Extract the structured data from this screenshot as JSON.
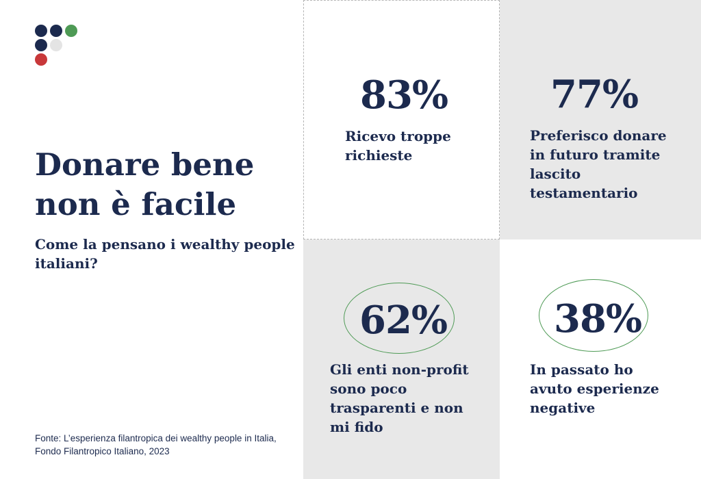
{
  "logo": {
    "colors": {
      "navy": "#1c2a4e",
      "green": "#4e9a55",
      "light": "#e4e4e4",
      "red": "#c8383a"
    }
  },
  "header": {
    "title": "Donare bene non è facile",
    "subtitle": "Come la pensano i wealthy people italiani?"
  },
  "source": {
    "line1": "Fonte: L’esperienza filantropica dei wealthy people in Italia,",
    "line2": "Fondo Filantropico Italiano, 2023"
  },
  "stats": [
    {
      "value": "83%",
      "label": "Ricevo troppe richieste",
      "circled": false
    },
    {
      "value": "77%",
      "label": "Preferisco donare in futuro tramite lascito testamentario",
      "circled": false
    },
    {
      "value": "62%",
      "label": "Gli enti non-profit sono poco trasparenti e non mi fido",
      "circled": true
    },
    {
      "value": "38%",
      "label": "In passato ho avuto esperienze negative",
      "circled": true
    }
  ],
  "colors": {
    "text": "#1c2a4e",
    "panel_grey": "#e8e8e8",
    "circle": "#4e9a55"
  }
}
